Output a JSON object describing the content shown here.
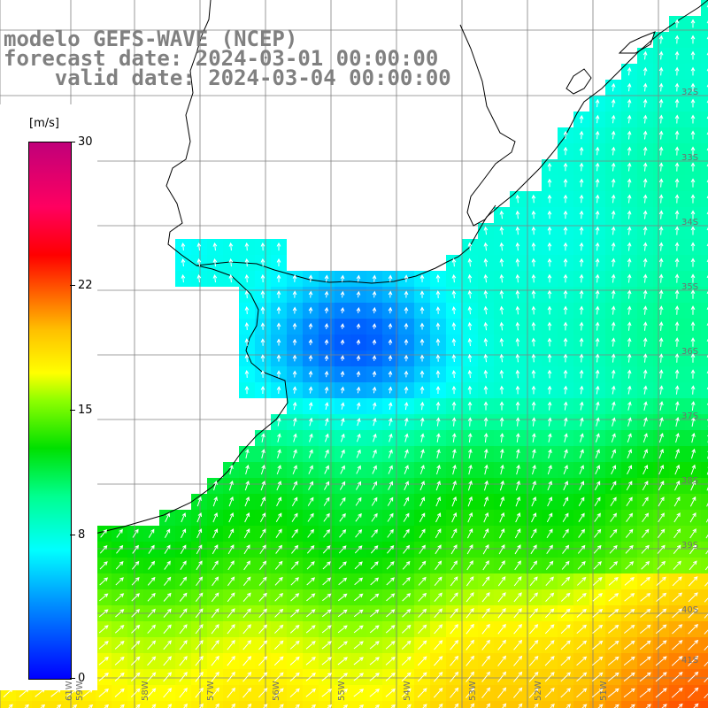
{
  "title": {
    "line1": "modelo GEFS-WAVE (NCEP)",
    "line2": "forecast date: 2024-03-01 00:00:00",
    "line3": "    valid date: 2024-03-04 00:00:00"
  },
  "colorbar": {
    "unit": "[m/s]",
    "min": 0,
    "max": 30,
    "ticks": [
      {
        "value": 30,
        "label": "30"
      },
      {
        "value": 22,
        "label": "22"
      },
      {
        "value": 15,
        "label": "15"
      },
      {
        "value": 8,
        "label": "8"
      },
      {
        "value": 0,
        "label": "0"
      }
    ],
    "colors": [
      "#0000ff",
      "#0090ff",
      "#00ffff",
      "#00ff90",
      "#00e000",
      "#90ff00",
      "#ffff00",
      "#ffc000",
      "#ff6000",
      "#ff0000",
      "#ff0060",
      "#c0007a"
    ]
  },
  "map": {
    "variable": "wind speed and direction",
    "lat_labels": [
      "32S",
      "33S",
      "34S",
      "35S",
      "36S",
      "37S",
      "38S",
      "39S",
      "40S",
      "41S"
    ],
    "lon_labels": [
      "61W",
      "59W",
      "58W",
      "57W",
      "56W",
      "55W",
      "54W",
      "53W",
      "52W",
      "51W"
    ],
    "land_color": "#ffffff",
    "grid_color": "#808080",
    "coast_color": "#000000"
  }
}
